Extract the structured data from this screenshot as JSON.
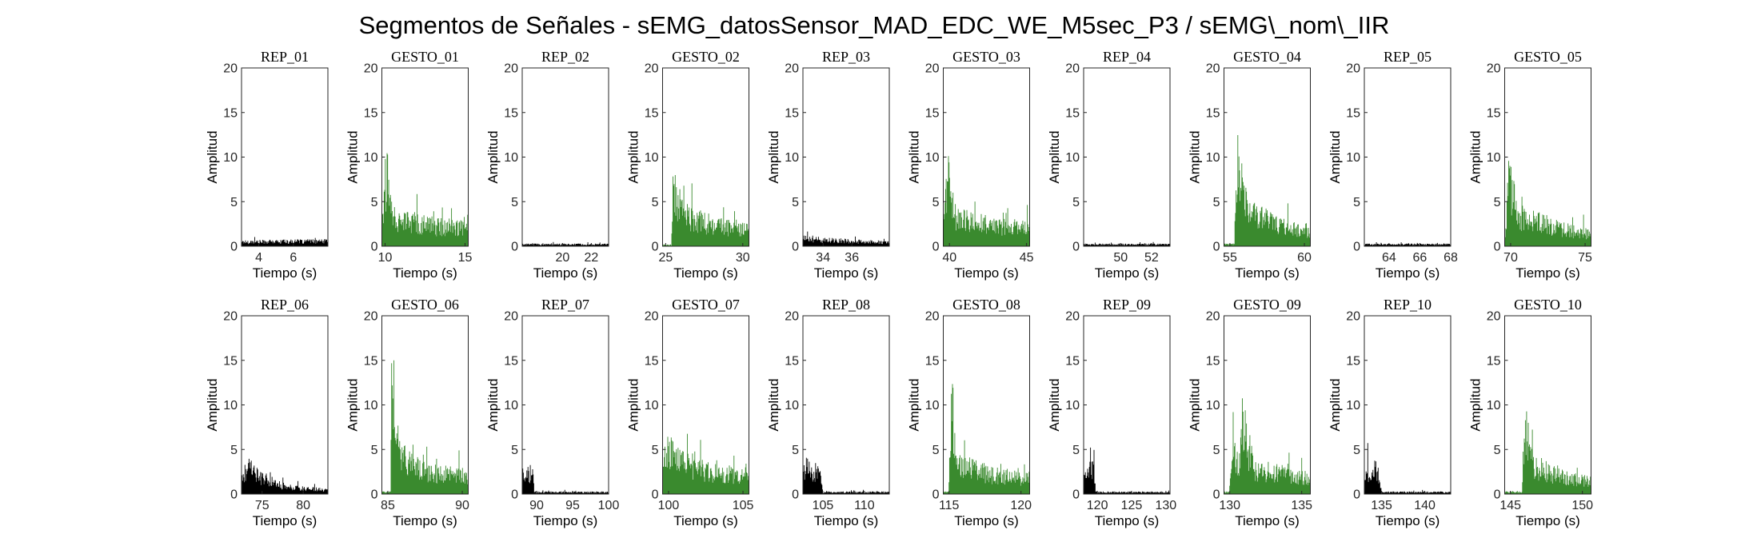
{
  "figure_title": "Segmentos de Señales - sEMG_datosSensor_MAD_EDC_WE_M5sec_P3 / sEMG\\_nom\\_IIR",
  "colors": {
    "rep": "#000000",
    "gesto": "#3a8a2e",
    "axis": "#262626"
  },
  "chart_data": [
    {
      "type": "area",
      "title": "REP_01",
      "xlabel": "Tiempo (s)",
      "ylabel": "Amplitud",
      "xlim": [
        3,
        8
      ],
      "ylim": [
        0,
        20
      ],
      "yticks": [
        0,
        5,
        10,
        15,
        20
      ],
      "xticks": [
        4,
        6
      ],
      "kind": "rep",
      "profile": [
        [
          0,
          0.7
        ],
        [
          1,
          0.8
        ]
      ]
    },
    {
      "type": "area",
      "title": "GESTO_01",
      "xlabel": "Tiempo (s)",
      "ylabel": "Amplitud",
      "xlim": [
        9.8,
        15.2
      ],
      "ylim": [
        0,
        20
      ],
      "yticks": [
        0,
        5,
        10,
        15,
        20
      ],
      "xticks": [
        10,
        15
      ],
      "kind": "gesto",
      "profile": [
        [
          0,
          3.5
        ],
        [
          0.05,
          11.5
        ],
        [
          0.15,
          4.5
        ],
        [
          0.6,
          3.2
        ],
        [
          1,
          3.0
        ]
      ]
    },
    {
      "type": "area",
      "title": "REP_02",
      "xlabel": "Tiempo (s)",
      "ylabel": "Amplitud",
      "xlim": [
        17.2,
        23.2
      ],
      "ylim": [
        0,
        20
      ],
      "yticks": [
        0,
        5,
        10,
        15,
        20
      ],
      "xticks": [
        20,
        22
      ],
      "kind": "rep",
      "profile": [
        [
          0,
          0.3
        ],
        [
          1,
          0.3
        ]
      ]
    },
    {
      "type": "area",
      "title": "GESTO_02",
      "xlabel": "Tiempo (s)",
      "ylabel": "Amplitud",
      "xlim": [
        24.8,
        30.4
      ],
      "ylim": [
        0,
        20
      ],
      "yticks": [
        0,
        5,
        10,
        15,
        20
      ],
      "xticks": [
        25,
        30
      ],
      "kind": "gesto",
      "profile": [
        [
          0,
          0.2
        ],
        [
          0.1,
          0.2
        ],
        [
          0.12,
          9
        ],
        [
          0.25,
          5
        ],
        [
          0.6,
          3.2
        ],
        [
          1,
          3.0
        ]
      ]
    },
    {
      "type": "area",
      "title": "REP_03",
      "xlabel": "Tiempo (s)",
      "ylabel": "Amplitud",
      "xlim": [
        32.6,
        38.6
      ],
      "ylim": [
        0,
        20
      ],
      "yticks": [
        0,
        5,
        10,
        15,
        20
      ],
      "xticks": [
        34,
        36
      ],
      "kind": "rep",
      "profile": [
        [
          0,
          1.5
        ],
        [
          0.2,
          1.0
        ],
        [
          1,
          0.6
        ]
      ]
    },
    {
      "type": "area",
      "title": "GESTO_03",
      "xlabel": "Tiempo (s)",
      "ylabel": "Amplitud",
      "xlim": [
        39.6,
        45.2
      ],
      "ylim": [
        0,
        20
      ],
      "yticks": [
        0,
        5,
        10,
        15,
        20
      ],
      "xticks": [
        40,
        45
      ],
      "kind": "gesto",
      "profile": [
        [
          0,
          3.5
        ],
        [
          0.05,
          11.5
        ],
        [
          0.15,
          4.5
        ],
        [
          0.6,
          3.2
        ],
        [
          1,
          3.0
        ]
      ]
    },
    {
      "type": "area",
      "title": "REP_04",
      "xlabel": "Tiempo (s)",
      "ylabel": "Amplitud",
      "xlim": [
        47.6,
        53.2
      ],
      "ylim": [
        0,
        20
      ],
      "yticks": [
        0,
        5,
        10,
        15,
        20
      ],
      "xticks": [
        50,
        52
      ],
      "kind": "rep",
      "profile": [
        [
          0,
          0.3
        ],
        [
          1,
          0.3
        ]
      ]
    },
    {
      "type": "area",
      "title": "GESTO_04",
      "xlabel": "Tiempo (s)",
      "ylabel": "Amplitud",
      "xlim": [
        54.6,
        60.4
      ],
      "ylim": [
        0,
        20
      ],
      "yticks": [
        0,
        5,
        10,
        15,
        20
      ],
      "xticks": [
        55,
        60
      ],
      "kind": "gesto",
      "profile": [
        [
          0,
          0.3
        ],
        [
          0.12,
          0.3
        ],
        [
          0.15,
          13
        ],
        [
          0.3,
          5.5
        ],
        [
          0.6,
          3.5
        ],
        [
          1,
          2.5
        ]
      ]
    },
    {
      "type": "area",
      "title": "REP_05",
      "xlabel": "Tiempo (s)",
      "ylabel": "Amplitud",
      "xlim": [
        62.4,
        68
      ],
      "ylim": [
        0,
        20
      ],
      "yticks": [
        0,
        5,
        10,
        15,
        20
      ],
      "xticks": [
        64,
        66,
        68
      ],
      "kind": "rep",
      "profile": [
        [
          0,
          0.3
        ],
        [
          1,
          0.3
        ]
      ]
    },
    {
      "type": "area",
      "title": "GESTO_05",
      "xlabel": "Tiempo (s)",
      "ylabel": "Amplitud",
      "xlim": [
        69.6,
        75.4
      ],
      "ylim": [
        0,
        20
      ],
      "yticks": [
        0,
        5,
        10,
        15,
        20
      ],
      "xticks": [
        70,
        75
      ],
      "kind": "gesto",
      "profile": [
        [
          0,
          0.5
        ],
        [
          0.05,
          10.5
        ],
        [
          0.15,
          5
        ],
        [
          0.6,
          3.0
        ],
        [
          1,
          2.0
        ]
      ]
    },
    {
      "type": "area",
      "title": "REP_06",
      "xlabel": "Tiempo (s)",
      "ylabel": "Amplitud",
      "xlim": [
        72.5,
        83
      ],
      "ylim": [
        0,
        20
      ],
      "yticks": [
        0,
        5,
        10,
        15,
        20
      ],
      "xticks": [
        75,
        80
      ],
      "kind": "rep",
      "profile": [
        [
          0,
          3.0
        ],
        [
          0.1,
          4.5
        ],
        [
          0.25,
          2.5
        ],
        [
          0.5,
          1.2
        ],
        [
          1,
          0.6
        ]
      ]
    },
    {
      "type": "area",
      "title": "GESTO_06",
      "xlabel": "Tiempo (s)",
      "ylabel": "Amplitud",
      "xlim": [
        84.6,
        90.4
      ],
      "ylim": [
        0,
        20
      ],
      "yticks": [
        0,
        5,
        10,
        15,
        20
      ],
      "xticks": [
        85,
        90
      ],
      "kind": "gesto",
      "profile": [
        [
          0,
          0.3
        ],
        [
          0.1,
          0.3
        ],
        [
          0.12,
          18.5
        ],
        [
          0.2,
          6
        ],
        [
          0.5,
          3.5
        ],
        [
          1,
          3.0
        ]
      ]
    },
    {
      "type": "area",
      "title": "REP_07",
      "xlabel": "Tiempo (s)",
      "ylabel": "Amplitud",
      "xlim": [
        88,
        100
      ],
      "ylim": [
        0,
        20
      ],
      "yticks": [
        0,
        5,
        10,
        15,
        20
      ],
      "xticks": [
        90,
        95,
        100
      ],
      "kind": "rep",
      "profile": [
        [
          0,
          3.0
        ],
        [
          0.12,
          3.5
        ],
        [
          0.14,
          0.3
        ],
        [
          1,
          0.3
        ]
      ]
    },
    {
      "type": "area",
      "title": "GESTO_07",
      "xlabel": "Tiempo (s)",
      "ylabel": "Amplitud",
      "xlim": [
        99.6,
        105.4
      ],
      "ylim": [
        0,
        20
      ],
      "yticks": [
        0,
        5,
        10,
        15,
        20
      ],
      "xticks": [
        100,
        105
      ],
      "kind": "gesto",
      "profile": [
        [
          0,
          4.0
        ],
        [
          0.05,
          7.5
        ],
        [
          0.2,
          5
        ],
        [
          0.6,
          3.5
        ],
        [
          1,
          3.0
        ]
      ]
    },
    {
      "type": "area",
      "title": "REP_08",
      "xlabel": "Tiempo (s)",
      "ylabel": "Amplitud",
      "xlim": [
        102.6,
        113
      ],
      "ylim": [
        0,
        20
      ],
      "yticks": [
        0,
        5,
        10,
        15,
        20
      ],
      "xticks": [
        105,
        110
      ],
      "kind": "rep",
      "profile": [
        [
          0,
          4.5
        ],
        [
          0.2,
          3.5
        ],
        [
          0.23,
          0.3
        ],
        [
          1,
          0.3
        ]
      ]
    },
    {
      "type": "area",
      "title": "GESTO_08",
      "xlabel": "Tiempo (s)",
      "ylabel": "Amplitud",
      "xlim": [
        114.6,
        120.6
      ],
      "ylim": [
        0,
        20
      ],
      "yticks": [
        0,
        5,
        10,
        15,
        20
      ],
      "xticks": [
        115,
        120
      ],
      "kind": "gesto",
      "profile": [
        [
          0,
          0.3
        ],
        [
          0.06,
          0.3
        ],
        [
          0.08,
          10
        ],
        [
          0.2,
          4.5
        ],
        [
          0.6,
          3.0
        ],
        [
          1,
          2.5
        ]
      ]
    },
    {
      "type": "area",
      "title": "REP_09",
      "xlabel": "Tiempo (s)",
      "ylabel": "Amplitud",
      "xlim": [
        118,
        130.6
      ],
      "ylim": [
        0,
        20
      ],
      "yticks": [
        0,
        5,
        10,
        15,
        20
      ],
      "xticks": [
        120,
        125,
        130
      ],
      "kind": "rep",
      "profile": [
        [
          0,
          2.5
        ],
        [
          0.12,
          4.5
        ],
        [
          0.14,
          0.3
        ],
        [
          1,
          0.3
        ]
      ]
    },
    {
      "type": "area",
      "title": "GESTO_09",
      "xlabel": "Tiempo (s)",
      "ylabel": "Amplitud",
      "xlim": [
        129.6,
        135.6
      ],
      "ylim": [
        0,
        20
      ],
      "yticks": [
        0,
        5,
        10,
        15,
        20
      ],
      "xticks": [
        130,
        135
      ],
      "kind": "gesto",
      "profile": [
        [
          0,
          0.3
        ],
        [
          0.06,
          0.3
        ],
        [
          0.1,
          7
        ],
        [
          0.18,
          5
        ],
        [
          0.2,
          12
        ],
        [
          0.35,
          4
        ],
        [
          1,
          2.5
        ]
      ]
    },
    {
      "type": "area",
      "title": "REP_10",
      "xlabel": "Tiempo (s)",
      "ylabel": "Amplitud",
      "xlim": [
        133,
        143
      ],
      "ylim": [
        0,
        20
      ],
      "yticks": [
        0,
        5,
        10,
        15,
        20
      ],
      "xticks": [
        135,
        140
      ],
      "kind": "rep",
      "profile": [
        [
          0,
          3.5
        ],
        [
          0.15,
          4.0
        ],
        [
          0.2,
          0.3
        ],
        [
          1,
          0.3
        ]
      ]
    },
    {
      "type": "area",
      "title": "GESTO_10",
      "xlabel": "Tiempo (s)",
      "ylabel": "Amplitud",
      "xlim": [
        144.6,
        150.6
      ],
      "ylim": [
        0,
        20
      ],
      "yticks": [
        0,
        5,
        10,
        15,
        20
      ],
      "xticks": [
        145,
        150
      ],
      "kind": "gesto",
      "profile": [
        [
          0,
          0.3
        ],
        [
          0.2,
          0.3
        ],
        [
          0.23,
          10.5
        ],
        [
          0.35,
          4.5
        ],
        [
          0.6,
          3.0
        ],
        [
          1,
          2.0
        ]
      ]
    }
  ]
}
